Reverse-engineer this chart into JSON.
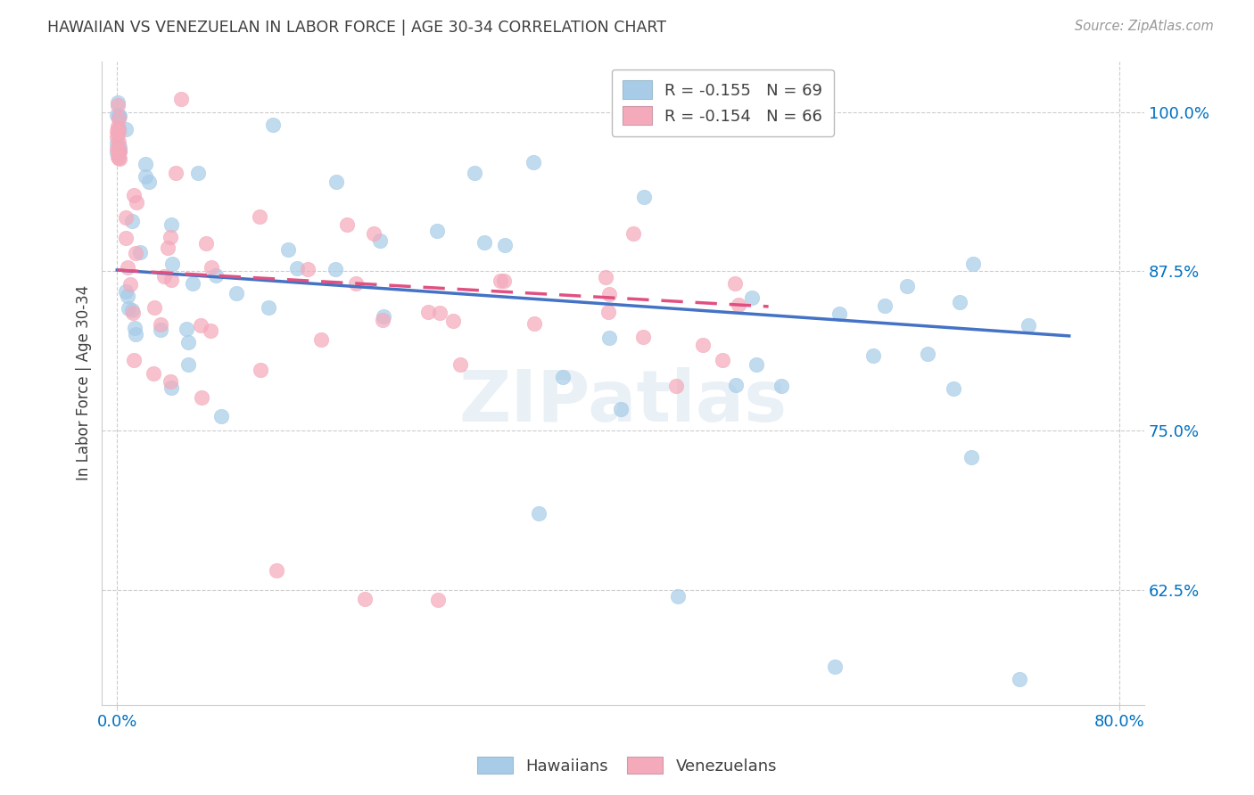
{
  "title": "HAWAIIAN VS VENEZUELAN IN LABOR FORCE | AGE 30-34 CORRELATION CHART",
  "source": "Source: ZipAtlas.com",
  "ylabel": "In Labor Force | Age 30-34",
  "ytick_labels": [
    "100.0%",
    "87.5%",
    "75.0%",
    "62.5%"
  ],
  "ytick_values": [
    1.0,
    0.875,
    0.75,
    0.625
  ],
  "xtick_left": "0.0%",
  "xtick_right": "80.0%",
  "xlim": [
    -0.012,
    0.82
  ],
  "ylim": [
    0.535,
    1.04
  ],
  "legend_blue_r": "R = -0.155",
  "legend_blue_n": "N = 69",
  "legend_pink_r": "R = -0.154",
  "legend_pink_n": "N = 66",
  "blue_color": "#A8CCE8",
  "pink_color": "#F4AABB",
  "blue_line_color": "#4472C4",
  "pink_line_color": "#E05080",
  "background_color": "#FFFFFF",
  "grid_color": "#CCCCCC",
  "title_color": "#404040",
  "axis_tick_color": "#0070C0",
  "label_hawaiians": "Hawaiians",
  "label_venezuelans": "Venezuelans",
  "watermark": "ZIPatlas",
  "blue_intercept": 0.876,
  "blue_slope": -0.068,
  "pink_intercept": 0.876,
  "pink_slope": -0.055,
  "blue_line_xmax": 0.76,
  "pink_line_xmax": 0.52
}
